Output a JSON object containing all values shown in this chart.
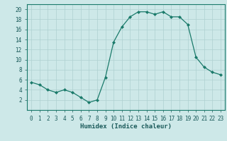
{
  "x": [
    0,
    1,
    2,
    3,
    4,
    5,
    6,
    7,
    8,
    9,
    10,
    11,
    12,
    13,
    14,
    15,
    16,
    17,
    18,
    19,
    20,
    21,
    22,
    23
  ],
  "y": [
    5.5,
    5.0,
    4.0,
    3.5,
    4.0,
    3.5,
    2.5,
    1.5,
    2.0,
    6.5,
    13.5,
    16.5,
    18.5,
    19.5,
    19.5,
    19.0,
    19.5,
    18.5,
    18.5,
    17.0,
    10.5,
    8.5,
    7.5,
    7.0
  ],
  "line_color": "#1a7a6a",
  "marker": "D",
  "marker_size": 2,
  "bg_color": "#cde8e8",
  "grid_color": "#aed0d0",
  "xlabel": "Humidex (Indice chaleur)",
  "xlim": [
    -0.5,
    23.5
  ],
  "ylim": [
    0,
    21
  ],
  "yticks": [
    2,
    4,
    6,
    8,
    10,
    12,
    14,
    16,
    18,
    20
  ],
  "xticks": [
    0,
    1,
    2,
    3,
    4,
    5,
    6,
    7,
    8,
    9,
    10,
    11,
    12,
    13,
    14,
    15,
    16,
    17,
    18,
    19,
    20,
    21,
    22,
    23
  ],
  "xlabel_fontsize": 6.5,
  "tick_fontsize": 5.5,
  "tick_color": "#1a5a5a",
  "spine_color": "#1a7a6a",
  "linewidth": 0.9
}
